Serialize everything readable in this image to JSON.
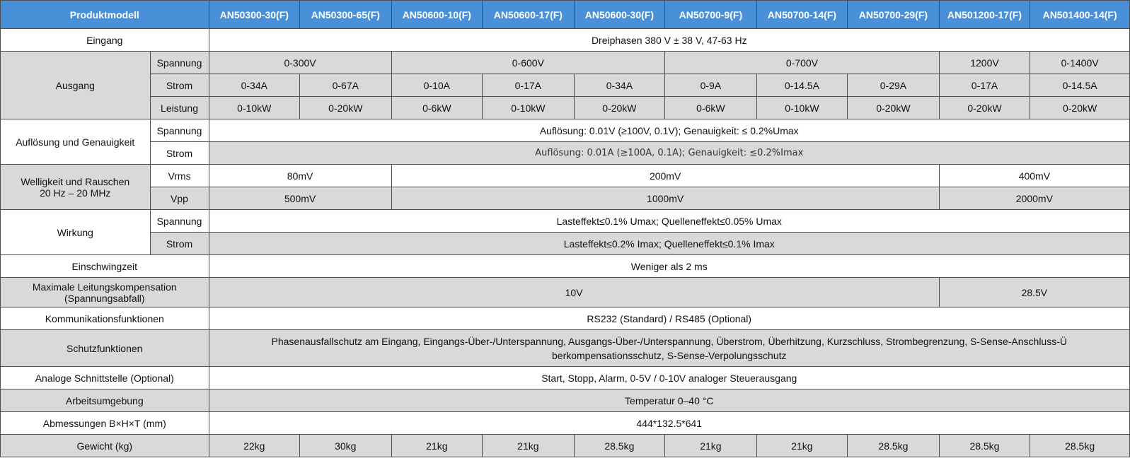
{
  "header": {
    "label": "Produktmodell",
    "models": [
      "AN50300-30(F)",
      "AN50300-65(F)",
      "AN50600-10(F)",
      "AN50600-17(F)",
      "AN50600-30(F)",
      "AN50700-9(F)",
      "AN50700-14(F)",
      "AN50700-29(F)",
      "AN501200-17(F)",
      "AN501400-14(F)"
    ]
  },
  "eingang": {
    "label": "Eingang",
    "value": "Dreiphasen 380 V ± 38 V, 47-63 Hz"
  },
  "ausgang": {
    "label": "Ausgang",
    "spannung": {
      "label": "Spannung",
      "values": [
        "0-300V",
        "0-600V",
        "0-700V",
        "1200V",
        "0-1400V"
      ]
    },
    "strom": {
      "label": "Strom",
      "values": [
        "0-34A",
        "0-67A",
        "0-10A",
        "0-17A",
        "0-34A",
        "0-9A",
        "0-14.5A",
        "0-29A",
        "0-17A",
        "0-14.5A"
      ]
    },
    "leistung": {
      "label": "Leistung",
      "values": [
        "0-10kW",
        "0-20kW",
        "0-6kW",
        "0-10kW",
        "0-20kW",
        "0-6kW",
        "0-10kW",
        "0-20kW",
        "0-20kW",
        "0-20kW"
      ]
    }
  },
  "aufloesung": {
    "label": "Auflösung und Genauigkeit",
    "spannung": {
      "label": "Spannung",
      "value": "Auflösung: 0.01V (≥100V, 0.1V); Genauigkeit: ≤ 0.2%Umax"
    },
    "strom": {
      "label": "Strom",
      "value": "Auflösung: 0.01A (≥100A, 0.1A); Genauigkeit: ≤0.2%Imax"
    }
  },
  "welligkeit": {
    "label1": "Welligkeit und Rauschen",
    "label2": "20 Hz – 20 MHz",
    "vrms": {
      "label": "Vrms",
      "values": [
        "80mV",
        "200mV",
        "400mV"
      ]
    },
    "vpp": {
      "label": "Vpp",
      "values": [
        "500mV",
        "1000mV",
        "2000mV"
      ]
    }
  },
  "wirkung": {
    "label": "Wirkung",
    "spannung": {
      "label": "Spannung",
      "value": "Lasteffekt≤0.1% Umax; Quelleneffekt≤0.05% Umax"
    },
    "strom": {
      "label": "Strom",
      "value": "Lasteffekt≤0.2% Imax; Quelleneffekt≤0.1% Imax"
    }
  },
  "einschwingzeit": {
    "label": "Einschwingzeit",
    "value": "Weniger als 2 ms"
  },
  "leitungskompensation": {
    "label1": "Maximale Leitungskompensation",
    "label2": "(Spannungsabfall)",
    "values": [
      "10V",
      "28.5V"
    ]
  },
  "kommunikation": {
    "label": "Kommunikationsfunktionen",
    "value": "RS232 (Standard) / RS485 (Optional)"
  },
  "schutz": {
    "label": "Schutzfunktionen",
    "line1": "Phasenausfallschutz am Eingang, Eingangs-Über-/Unterspannung, Ausgangs-Über-/Unterspannung, Überstrom, Überhitzung, Kurzschluss, Strombegrenzung, S-Sense-Anschluss-Ü",
    "line2": "berkompensationsschutz, S-Sense-Verpolungsschutz"
  },
  "analog": {
    "label": "Analoge Schnittstelle (Optional)",
    "value": "Start, Stopp, Alarm, 0-5V / 0-10V analoger Steuerausgang"
  },
  "umgebung": {
    "label": "Arbeitsumgebung",
    "value": "Temperatur 0–40 °C"
  },
  "abmessungen": {
    "label": "Abmessungen B×H×T (mm)",
    "value": "444*132.5*641"
  },
  "gewicht": {
    "label": "Gewicht (kg)",
    "values": [
      "22kg",
      "30kg",
      "21kg",
      "21kg",
      "28.5kg",
      "21kg",
      "21kg",
      "28.5kg",
      "28.5kg",
      "28.5kg"
    ]
  }
}
